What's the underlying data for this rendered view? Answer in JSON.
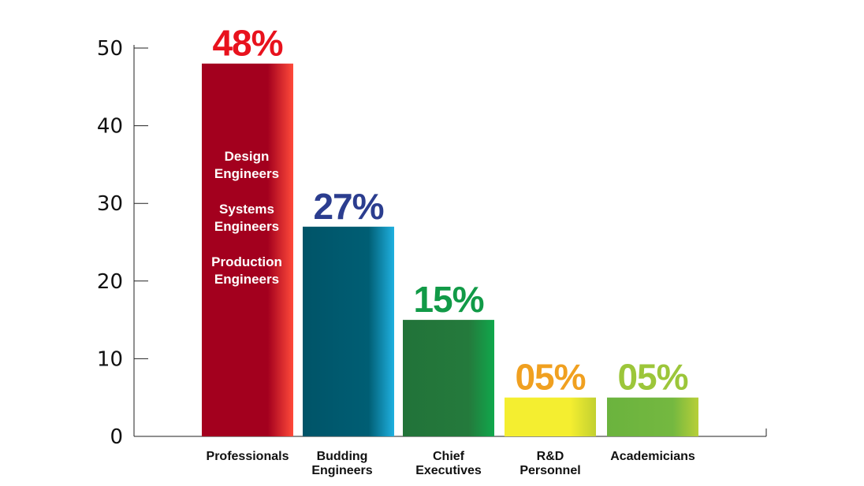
{
  "chart_data": {
    "type": "bar",
    "categories": [
      [
        "Professionals"
      ],
      [
        "Budding",
        "Engineers"
      ],
      [
        "Chief",
        "Executives"
      ],
      [
        "R&D",
        "Personnel"
      ],
      [
        "Academicians"
      ]
    ],
    "values": [
      48,
      27,
      15,
      5,
      5
    ],
    "data_labels": [
      "48%",
      "27%",
      "15%",
      "05%",
      "05%"
    ],
    "label_colors": [
      "#e8121d",
      "#2b3d8f",
      "#119a47",
      "#f0a020",
      "#9cc63a"
    ],
    "bar_gradients": [
      [
        "#a3001e",
        "#a3001e",
        "#ff4a3a"
      ],
      [
        "#005468",
        "#005e74",
        "#1fb0e0"
      ],
      [
        "#227339",
        "#247a3c",
        "#10a84c"
      ],
      [
        "#f4ee30",
        "#f4ee30",
        "#c2d030"
      ],
      [
        "#6bb33e",
        "#74b840",
        "#b7cf38"
      ]
    ],
    "inner_text": [
      "Design",
      "Engineers",
      "",
      "Systems",
      "Engineers",
      "",
      "Production",
      "Engineers"
    ],
    "yticks": [
      0,
      10,
      20,
      30,
      40,
      50
    ],
    "ylim": [
      0,
      50
    ],
    "grid": false,
    "legend": "none",
    "title": "",
    "xlabel": "",
    "ylabel": ""
  }
}
